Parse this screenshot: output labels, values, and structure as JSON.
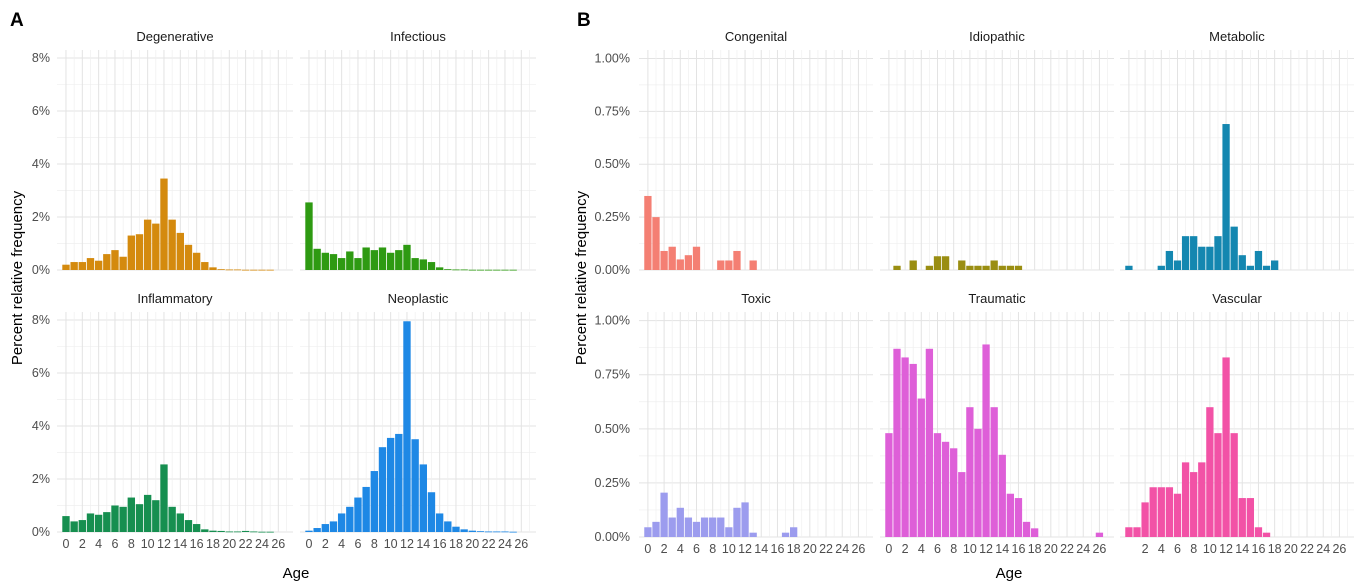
{
  "panels": [
    {
      "letter": "A",
      "xlabel": "Age",
      "ylabel": "Percent relative frequency",
      "y_ticks": [
        0,
        2,
        4,
        6,
        8
      ],
      "y_tick_labels": [
        "0%",
        "2%",
        "4%",
        "6%",
        "8%"
      ],
      "x_tick_labels": [
        "0",
        "2",
        "4",
        "6",
        "8",
        "10",
        "12",
        "14",
        "16",
        "18",
        "20",
        "22",
        "24",
        "26"
      ]
    },
    {
      "letter": "B",
      "xlabel": "Age",
      "ylabel": "Percent relative frequency",
      "y_ticks": [
        0,
        0.25,
        0.5,
        0.75,
        1.0
      ],
      "y_tick_labels": [
        "0.00%",
        "0.25%",
        "0.50%",
        "0.75%",
        "1.00%"
      ],
      "x_tick_labels": [
        "0",
        "2",
        "4",
        "6",
        "8",
        "10",
        "12",
        "14",
        "16",
        "18",
        "20",
        "22",
        "24",
        "26"
      ],
      "x_tick_labels_vascular": [
        "2",
        "4",
        "6",
        "8",
        "10",
        "12",
        "14",
        "16",
        "18",
        "20",
        "22",
        "24",
        "26"
      ]
    }
  ],
  "chart_data": [
    {
      "type": "bar",
      "panel": "A",
      "xlabel": "Age",
      "ylabel": "Percent relative frequency",
      "ylim": [
        0,
        8.3
      ],
      "x": [
        0,
        1,
        2,
        3,
        4,
        5,
        6,
        7,
        8,
        9,
        10,
        11,
        12,
        13,
        14,
        15,
        16,
        17,
        18,
        19,
        20,
        21,
        22,
        23,
        24,
        25,
        26
      ],
      "series": [
        {
          "name": "Degenerative",
          "color": "#D48A0E",
          "values": [
            0.2,
            0.3,
            0.3,
            0.45,
            0.35,
            0.6,
            0.75,
            0.5,
            1.3,
            1.35,
            1.9,
            1.75,
            3.45,
            1.9,
            1.4,
            0.95,
            0.65,
            0.3,
            0.1,
            0.03,
            0.02,
            0.02,
            0.01,
            0.01,
            0.01,
            0.01,
            0
          ]
        },
        {
          "name": "Infectious",
          "color": "#2E9A12",
          "values": [
            2.55,
            0.8,
            0.65,
            0.6,
            0.45,
            0.7,
            0.45,
            0.85,
            0.75,
            0.85,
            0.65,
            0.75,
            0.95,
            0.45,
            0.4,
            0.3,
            0.1,
            0.03,
            0.02,
            0.02,
            0.01,
            0.01,
            0.01,
            0.01,
            0.01,
            0.01,
            0
          ]
        },
        {
          "name": "Inflammatory",
          "color": "#168F50",
          "values": [
            0.6,
            0.4,
            0.45,
            0.7,
            0.65,
            0.75,
            1.0,
            0.95,
            1.3,
            1.05,
            1.4,
            1.2,
            2.55,
            0.95,
            0.7,
            0.45,
            0.3,
            0.1,
            0.05,
            0.04,
            0.02,
            0.02,
            0.04,
            0.02,
            0.01,
            0.01,
            0
          ]
        },
        {
          "name": "Neoplastic",
          "color": "#1E88E5",
          "values": [
            0.05,
            0.15,
            0.3,
            0.4,
            0.7,
            0.95,
            1.3,
            1.7,
            2.3,
            3.2,
            3.55,
            3.7,
            7.95,
            3.5,
            2.55,
            1.5,
            0.7,
            0.4,
            0.2,
            0.1,
            0.05,
            0.03,
            0.02,
            0.02,
            0.02,
            0.01,
            0
          ]
        }
      ]
    },
    {
      "type": "bar",
      "panel": "B",
      "xlabel": "Age",
      "ylabel": "Percent relative frequency",
      "ylim": [
        0,
        1.04
      ],
      "x": [
        0,
        1,
        2,
        3,
        4,
        5,
        6,
        7,
        8,
        9,
        10,
        11,
        12,
        13,
        14,
        15,
        16,
        17,
        18,
        19,
        20,
        21,
        22,
        23,
        24,
        25,
        26
      ],
      "series": [
        {
          "name": "Congenital",
          "color": "#F47F73",
          "values": [
            0.35,
            0.25,
            0.09,
            0.11,
            0.05,
            0.07,
            0.11,
            0,
            0,
            0.045,
            0.045,
            0.09,
            0,
            0.045,
            0,
            0,
            0,
            0,
            0,
            0,
            0,
            0,
            0,
            0,
            0,
            0,
            0
          ]
        },
        {
          "name": "Idiopathic",
          "color": "#9A8E12",
          "values": [
            0,
            0.02,
            0,
            0.045,
            0,
            0.02,
            0.065,
            0.065,
            0,
            0.045,
            0.02,
            0.02,
            0.02,
            0.045,
            0.02,
            0.02,
            0.02,
            0,
            0,
            0,
            0,
            0,
            0,
            0,
            0,
            0,
            0
          ]
        },
        {
          "name": "Metabolic",
          "color": "#1487B0",
          "values": [
            0.02,
            0,
            0,
            0,
            0.02,
            0.09,
            0.045,
            0.16,
            0.16,
            0.11,
            0.11,
            0.16,
            0.69,
            0.205,
            0.07,
            0.02,
            0.09,
            0.02,
            0.045,
            0,
            0,
            0,
            0,
            0,
            0,
            0,
            0
          ]
        },
        {
          "name": "Toxic",
          "color": "#9C9CEE",
          "values": [
            0.045,
            0.07,
            0.205,
            0.09,
            0.135,
            0.09,
            0.07,
            0.09,
            0.09,
            0.09,
            0.045,
            0.135,
            0.16,
            0.02,
            0,
            0,
            0,
            0.02,
            0.045,
            0,
            0,
            0,
            0,
            0,
            0,
            0,
            0
          ]
        },
        {
          "name": "Traumatic",
          "color": "#DE5FD8",
          "values": [
            0.48,
            0.87,
            0.83,
            0.8,
            0.64,
            0.87,
            0.48,
            0.44,
            0.41,
            0.3,
            0.6,
            0.5,
            0.89,
            0.6,
            0.38,
            0.2,
            0.18,
            0.07,
            0.04,
            0,
            0,
            0,
            0,
            0,
            0,
            0,
            0.02
          ]
        },
        {
          "name": "Vascular",
          "color": "#F252A6",
          "values": [
            0.045,
            0.045,
            0.16,
            0.23,
            0.23,
            0.23,
            0.2,
            0.345,
            0.3,
            0.345,
            0.6,
            0.48,
            0.83,
            0.48,
            0.18,
            0.18,
            0.045,
            0.02,
            0,
            0,
            0,
            0,
            0,
            0,
            0,
            0,
            0
          ]
        }
      ]
    }
  ]
}
